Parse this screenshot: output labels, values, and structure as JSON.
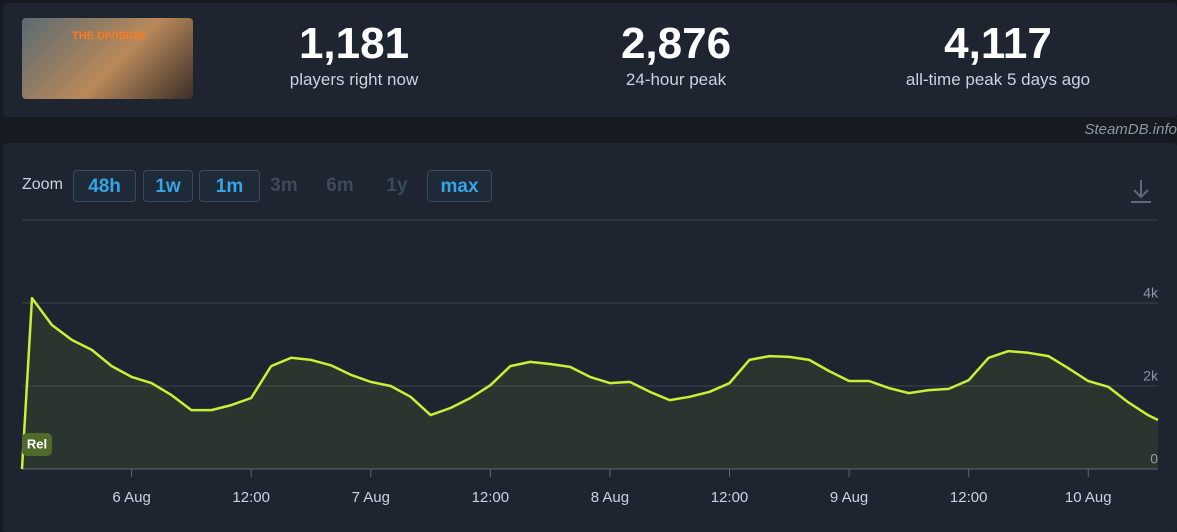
{
  "header": {
    "thumbnail_text": "THE DIVISION",
    "stats": [
      {
        "value": "1,181",
        "label": "players right now"
      },
      {
        "value": "2,876",
        "label": "24-hour peak"
      },
      {
        "value": "4,117",
        "label": "all-time peak 5 days ago"
      }
    ]
  },
  "source": "SteamDB.info",
  "zoom": {
    "label": "Zoom",
    "buttons": [
      {
        "label": "48h",
        "state": "enabled"
      },
      {
        "label": "1w",
        "state": "enabled"
      },
      {
        "label": "1m",
        "state": "enabled"
      },
      {
        "label": "3m",
        "state": "disabled"
      },
      {
        "label": "6m",
        "state": "disabled"
      },
      {
        "label": "1y",
        "state": "disabled"
      },
      {
        "label": "max",
        "state": "enabled"
      }
    ]
  },
  "chart_data": {
    "type": "line",
    "color": "#c6f135",
    "badge": "Rel",
    "x": [
      "5 Aug 13:00",
      "5 Aug 14:00",
      "5 Aug 16:00",
      "5 Aug 18:00",
      "5 Aug 20:00",
      "5 Aug 22:00",
      "6 Aug 00:00",
      "6 Aug 02:00",
      "6 Aug 04:00",
      "6 Aug 06:00",
      "6 Aug 08:00",
      "6 Aug 10:00",
      "6 Aug 12:00",
      "6 Aug 14:00",
      "6 Aug 16:00",
      "6 Aug 18:00",
      "6 Aug 20:00",
      "6 Aug 22:00",
      "7 Aug 00:00",
      "7 Aug 02:00",
      "7 Aug 04:00",
      "7 Aug 06:00",
      "7 Aug 08:00",
      "7 Aug 10:00",
      "7 Aug 12:00",
      "7 Aug 14:00",
      "7 Aug 16:00",
      "7 Aug 18:00",
      "7 Aug 20:00",
      "7 Aug 22:00",
      "8 Aug 00:00",
      "8 Aug 02:00",
      "8 Aug 04:00",
      "8 Aug 06:00",
      "8 Aug 08:00",
      "8 Aug 10:00",
      "8 Aug 12:00",
      "8 Aug 14:00",
      "8 Aug 16:00",
      "8 Aug 18:00",
      "8 Aug 20:00",
      "8 Aug 22:00",
      "9 Aug 00:00",
      "9 Aug 02:00",
      "9 Aug 04:00",
      "9 Aug 06:00",
      "9 Aug 08:00",
      "9 Aug 10:00",
      "9 Aug 12:00",
      "9 Aug 14:00",
      "9 Aug 16:00",
      "9 Aug 18:00",
      "9 Aug 20:00",
      "9 Aug 22:00",
      "10 Aug 00:00",
      "10 Aug 02:00",
      "10 Aug 04:00",
      "10 Aug 06:00",
      "10 Aug 07:00"
    ],
    "values": [
      0,
      4117,
      3470,
      3110,
      2870,
      2480,
      2220,
      2070,
      1780,
      1420,
      1420,
      1540,
      1710,
      2480,
      2680,
      2630,
      2500,
      2270,
      2100,
      2000,
      1740,
      1300,
      1470,
      1710,
      2020,
      2480,
      2580,
      2530,
      2460,
      2220,
      2070,
      2100,
      1860,
      1660,
      1740,
      1860,
      2070,
      2630,
      2720,
      2700,
      2630,
      2360,
      2120,
      2120,
      1950,
      1830,
      1900,
      1930,
      2140,
      2680,
      2840,
      2800,
      2720,
      2430,
      2120,
      1980,
      1610,
      1300,
      1181
    ],
    "xlim": [
      "5 Aug 13:00",
      "10 Aug 07:00"
    ],
    "xticks": [
      {
        "value": "6 Aug 00:00",
        "label": "6 Aug"
      },
      {
        "value": "6 Aug 12:00",
        "label": "12:00"
      },
      {
        "value": "7 Aug 00:00",
        "label": "7 Aug"
      },
      {
        "value": "7 Aug 12:00",
        "label": "12:00"
      },
      {
        "value": "8 Aug 00:00",
        "label": "8 Aug"
      },
      {
        "value": "8 Aug 12:00",
        "label": "12:00"
      },
      {
        "value": "9 Aug 00:00",
        "label": "9 Aug"
      },
      {
        "value": "9 Aug 12:00",
        "label": "12:00"
      },
      {
        "value": "10 Aug 00:00",
        "label": "10 Aug"
      }
    ],
    "ylim": [
      0,
      6000
    ],
    "yticks": [
      0,
      {
        "value": 2000,
        "label": "2k"
      },
      {
        "value": 4000,
        "label": "4k"
      }
    ],
    "grid": true
  }
}
